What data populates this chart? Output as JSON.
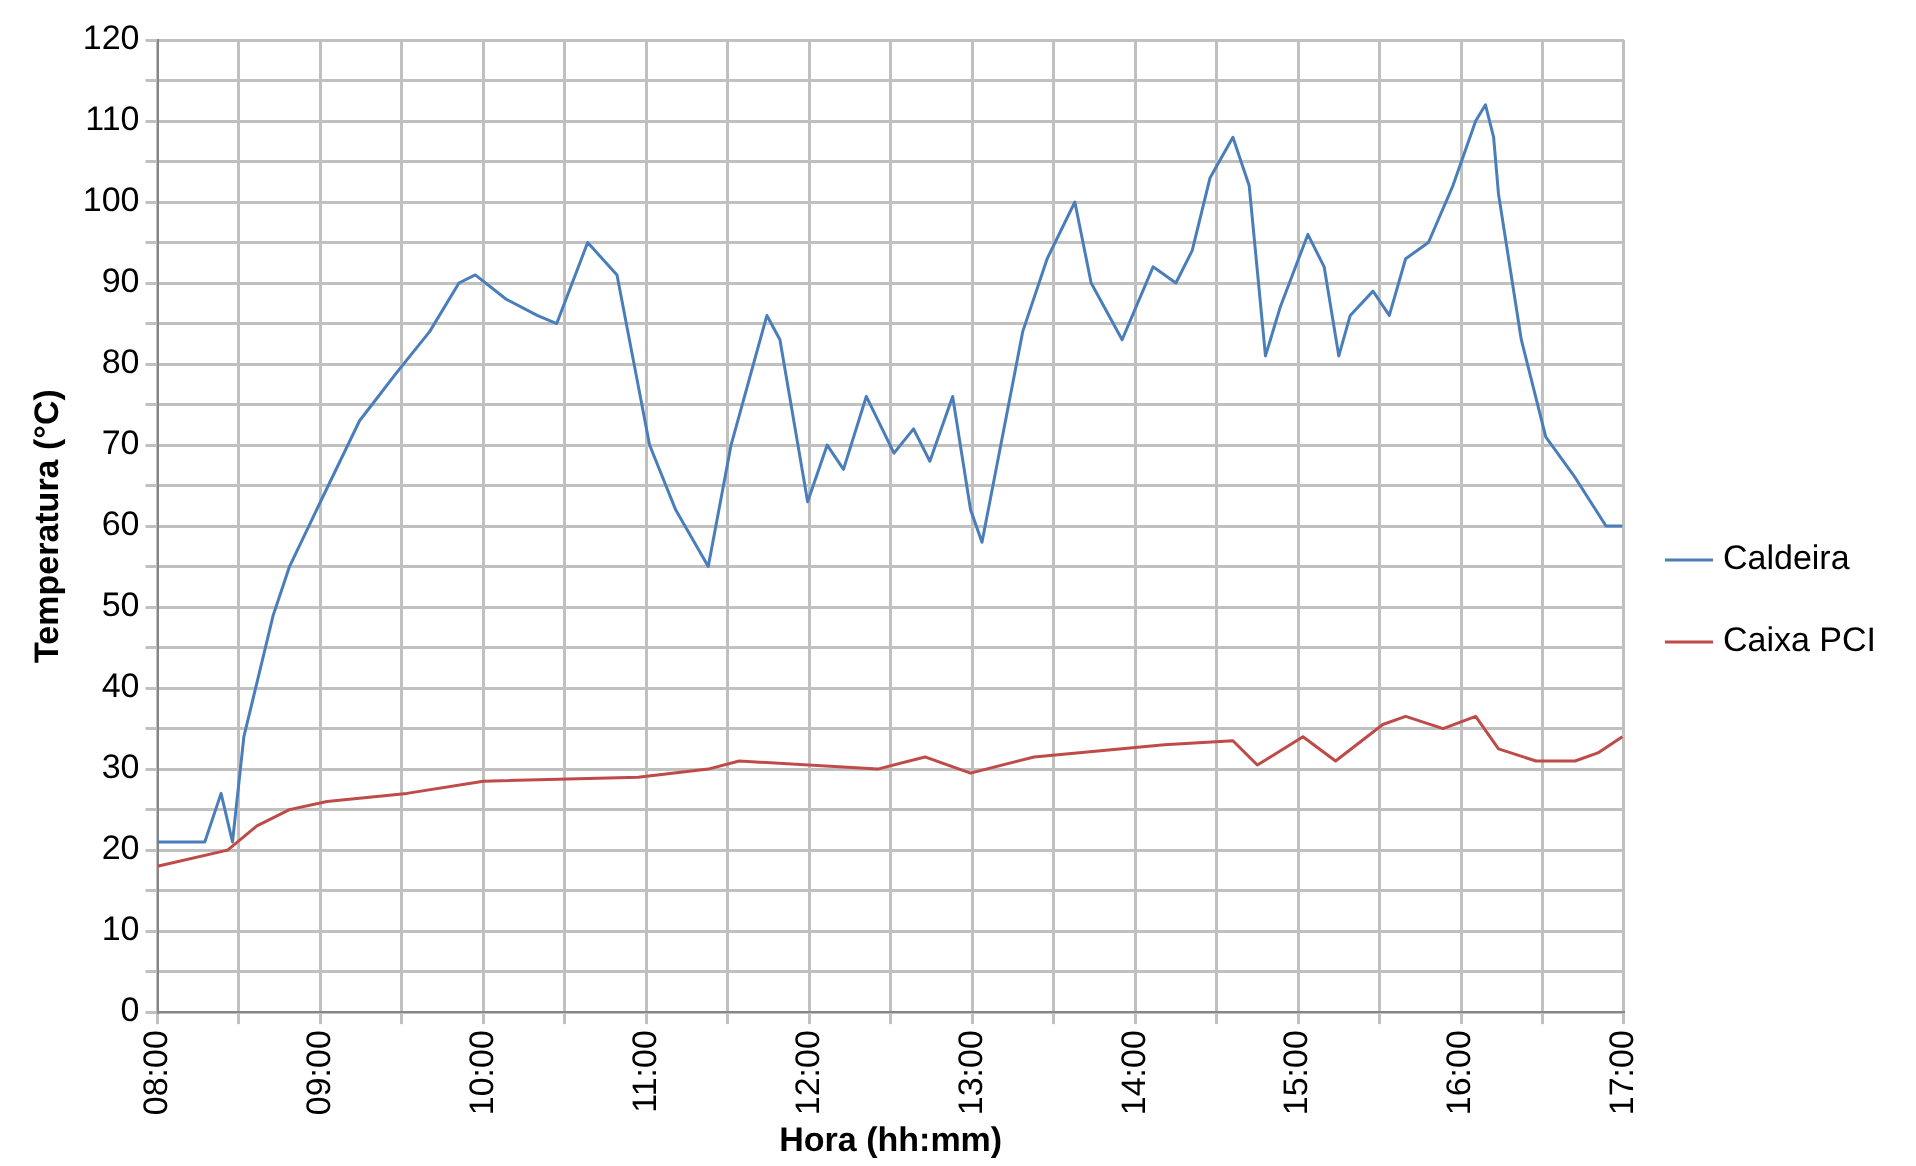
{
  "chart_data": {
    "type": "line",
    "xlabel": "Hora (hh:mm)",
    "ylabel": "Temperatura (°C)",
    "xlim": [
      8,
      17
    ],
    "ylim": [
      0,
      120
    ],
    "xticks": [
      {
        "value": 8,
        "label": "08:00"
      },
      {
        "value": 8.5,
        "label": null
      },
      {
        "value": 9,
        "label": "09:00"
      },
      {
        "value": 9.5,
        "label": null
      },
      {
        "value": 10,
        "label": "10:00"
      },
      {
        "value": 10.5,
        "label": null
      },
      {
        "value": 11,
        "label": "11:00"
      },
      {
        "value": 11.5,
        "label": null
      },
      {
        "value": 12,
        "label": "12:00"
      },
      {
        "value": 12.5,
        "label": null
      },
      {
        "value": 13,
        "label": "13:00"
      },
      {
        "value": 13.5,
        "label": null
      },
      {
        "value": 14,
        "label": "14:00"
      },
      {
        "value": 14.5,
        "label": null
      },
      {
        "value": 15,
        "label": "15:00"
      },
      {
        "value": 15.5,
        "label": null
      },
      {
        "value": 16,
        "label": "16:00"
      },
      {
        "value": 16.5,
        "label": null
      },
      {
        "value": 17,
        "label": "17:00"
      }
    ],
    "yticks": [
      0,
      {
        "value": 5,
        "label": null
      },
      10,
      {
        "value": 15,
        "label": null
      },
      20,
      {
        "value": 25,
        "label": null
      },
      30,
      {
        "value": 35,
        "label": null
      },
      40,
      {
        "value": 45,
        "label": null
      },
      50,
      {
        "value": 55,
        "label": null
      },
      60,
      {
        "value": 65,
        "label": null
      },
      70,
      {
        "value": 75,
        "label": null
      },
      80,
      {
        "value": 85,
        "label": null
      },
      90,
      {
        "value": 95,
        "label": null
      },
      100,
      {
        "value": 105,
        "label": null
      },
      110,
      {
        "value": 115,
        "label": null
      },
      120
    ],
    "grid": true,
    "legend": "right",
    "marker": "none",
    "line_style": "solid",
    "series": [
      {
        "name": "Caldeira",
        "color": "#4a7ebb",
        "x": [
          8.0,
          8.29,
          8.39,
          8.46,
          8.53,
          8.71,
          8.81,
          9.0,
          9.24,
          9.47,
          9.67,
          9.85,
          9.95,
          10.14,
          10.33,
          10.45,
          10.64,
          10.82,
          11.02,
          11.18,
          11.38,
          11.52,
          11.74,
          11.82,
          11.99,
          12.11,
          12.21,
          12.35,
          12.52,
          12.64,
          12.74,
          12.88,
          12.99,
          13.06,
          13.31,
          13.46,
          13.63,
          13.73,
          13.92,
          14.11,
          14.25,
          14.35,
          14.46,
          14.6,
          14.7,
          14.8,
          14.89,
          15.06,
          15.16,
          15.25,
          15.32,
          15.46,
          15.56,
          15.66,
          15.8,
          15.95,
          16.09,
          16.15,
          16.2,
          16.23,
          16.37,
          16.52,
          16.7,
          16.89,
          16.99
        ],
        "values": [
          21,
          21,
          27,
          21,
          34,
          49,
          55,
          63,
          73,
          79,
          84,
          90,
          91,
          88,
          86,
          85,
          95,
          91,
          70,
          62,
          55,
          70,
          86,
          83,
          63,
          70,
          67,
          76,
          69,
          72,
          68,
          76,
          62,
          58,
          84,
          93,
          100,
          90,
          83,
          92,
          90,
          94,
          103,
          108,
          102,
          81,
          87,
          96,
          92,
          81,
          86,
          89,
          86,
          93,
          95,
          102,
          110,
          112,
          108,
          101,
          83,
          71,
          66,
          60,
          60
        ]
      },
      {
        "name": "Caixa PCI",
        "color": "#be4b48",
        "x": [
          8.0,
          8.43,
          8.61,
          8.81,
          9.04,
          9.53,
          10.0,
          10.95,
          11.38,
          11.57,
          12.42,
          12.71,
          12.99,
          13.38,
          14.18,
          14.6,
          14.75,
          15.03,
          15.23,
          15.52,
          15.66,
          15.89,
          16.09,
          16.23,
          16.46,
          16.7,
          16.84,
          16.99
        ],
        "values": [
          18,
          20,
          23,
          25,
          26,
          27,
          28.5,
          29,
          30,
          31,
          30,
          31.5,
          29.5,
          31.5,
          33,
          33.5,
          30.5,
          34,
          31,
          35.5,
          36.5,
          35,
          36.5,
          32.5,
          31,
          31,
          32,
          34
        ]
      }
    ]
  }
}
